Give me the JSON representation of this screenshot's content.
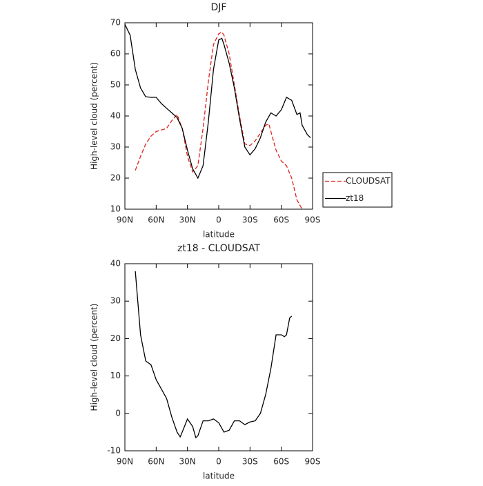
{
  "chart_data": [
    {
      "type": "line",
      "title": "DJF",
      "x_label": "latitude",
      "y_label": "High-level cloud (percent)",
      "xlim": [
        90,
        -90
      ],
      "xticks": [
        {
          "value": 90,
          "label": "90N"
        },
        {
          "value": 60,
          "label": "60N"
        },
        {
          "value": 30,
          "label": "30N"
        },
        0,
        {
          "value": -30,
          "label": "30S"
        },
        {
          "value": -60,
          "label": "60S"
        },
        {
          "value": -90,
          "label": "90S"
        }
      ],
      "ylim": [
        10,
        70
      ],
      "yticks": [
        10,
        20,
        30,
        40,
        50,
        60,
        70
      ],
      "legend": "right",
      "series": [
        {
          "name": "CLOUDSAT",
          "color": "#e0201b",
          "linestyle": "dashed",
          "x": [
            80,
            75,
            70,
            65,
            60,
            55,
            50,
            45,
            40,
            35,
            30,
            25,
            20,
            15,
            10,
            5,
            0,
            -3,
            -5,
            -10,
            -15,
            -20,
            -25,
            -30,
            -35,
            -40,
            -45,
            -48,
            -50,
            -55,
            -60,
            -65,
            -70,
            -75,
            -80
          ],
          "values": [
            22.5,
            27,
            31,
            33.5,
            35,
            35.5,
            36,
            38.5,
            40.5,
            36,
            27,
            22,
            24,
            36,
            51,
            63,
            66.5,
            67,
            66,
            60,
            50,
            40,
            31,
            30.5,
            32,
            34.5,
            37,
            37.5,
            35,
            29,
            25.5,
            24,
            20,
            13,
            10
          ]
        },
        {
          "name": "zt18",
          "color": "#000000",
          "linestyle": "solid",
          "x": [
            90,
            85,
            80,
            75,
            70,
            65,
            60,
            55,
            50,
            45,
            40,
            35,
            30,
            25,
            20,
            15,
            10,
            5,
            0,
            -3,
            -5,
            -10,
            -15,
            -20,
            -25,
            -30,
            -35,
            -40,
            -45,
            -50,
            -55,
            -60,
            -65,
            -70,
            -75,
            -78,
            -80,
            -85,
            -88
          ],
          "values": [
            69.5,
            66,
            55,
            49,
            46.2,
            46,
            46,
            44,
            42.5,
            41,
            39.5,
            36,
            29,
            23,
            20,
            24,
            38,
            55,
            64.5,
            65,
            63,
            57,
            49,
            39,
            30,
            27.5,
            29.5,
            33,
            38,
            41,
            40,
            42,
            46,
            45,
            40.5,
            41,
            37,
            34,
            33
          ]
        }
      ]
    },
    {
      "type": "line",
      "title": "zt18 - CLOUDSAT",
      "x_label": "latitude",
      "y_label": "High-level cloud (percent)",
      "xlim": [
        90,
        -90
      ],
      "xticks": [
        {
          "value": 90,
          "label": "90N"
        },
        {
          "value": 60,
          "label": "60N"
        },
        {
          "value": 30,
          "label": "30N"
        },
        0,
        {
          "value": -30,
          "label": "30S"
        },
        {
          "value": -60,
          "label": "60S"
        },
        {
          "value": -90,
          "label": "90S"
        }
      ],
      "ylim": [
        -10,
        40
      ],
      "yticks": [
        -10,
        0,
        10,
        20,
        30,
        40
      ],
      "series": [
        {
          "color": "#000000",
          "linestyle": "solid",
          "x": [
            80,
            75,
            70,
            65,
            60,
            55,
            50,
            45,
            40,
            37,
            35,
            30,
            25,
            22,
            20,
            15,
            10,
            5,
            0,
            -5,
            -10,
            -15,
            -20,
            -25,
            -30,
            -35,
            -40,
            -45,
            -50,
            -55,
            -60,
            -63,
            -65,
            -68,
            -70
          ],
          "values": [
            38,
            21,
            14,
            13,
            9,
            6.5,
            4,
            -1,
            -5,
            -6.3,
            -5,
            -1.5,
            -3.5,
            -6.5,
            -6,
            -2,
            -2,
            -1.5,
            -2.5,
            -5,
            -4.5,
            -2,
            -2,
            -3,
            -2.3,
            -2,
            0,
            5,
            12,
            21,
            21,
            20.5,
            21,
            25.5,
            26
          ]
        }
      ]
    }
  ]
}
